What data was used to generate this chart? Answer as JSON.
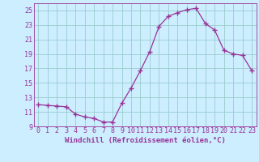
{
  "x": [
    0,
    1,
    2,
    3,
    4,
    5,
    6,
    7,
    8,
    9,
    10,
    11,
    12,
    13,
    14,
    15,
    16,
    17,
    18,
    19,
    20,
    21,
    22,
    23
  ],
  "y": [
    12.0,
    11.9,
    11.8,
    11.7,
    10.7,
    10.3,
    10.1,
    9.6,
    9.6,
    12.2,
    14.3,
    16.7,
    19.3,
    22.8,
    24.2,
    24.7,
    25.1,
    25.3,
    23.2,
    22.3,
    19.5,
    19.0,
    18.8,
    16.7
  ],
  "line_color": "#993399",
  "marker": "+",
  "marker_size": 4,
  "bg_color": "#cceeff",
  "grid_color": "#99cccc",
  "xlabel": "Windchill (Refroidissement éolien,°C)",
  "xlabel_fontsize": 6.5,
  "tick_fontsize": 6.0,
  "ylim": [
    9,
    26
  ],
  "yticks": [
    9,
    11,
    13,
    15,
    17,
    19,
    21,
    23,
    25
  ],
  "xlim": [
    -0.5,
    23.5
  ],
  "xtick_labels": [
    "0",
    "1",
    "2",
    "3",
    "4",
    "5",
    "6",
    "7",
    "8",
    "9",
    "10",
    "11",
    "12",
    "13",
    "14",
    "15",
    "16",
    "17",
    "18",
    "19",
    "20",
    "21",
    "22",
    "23"
  ]
}
